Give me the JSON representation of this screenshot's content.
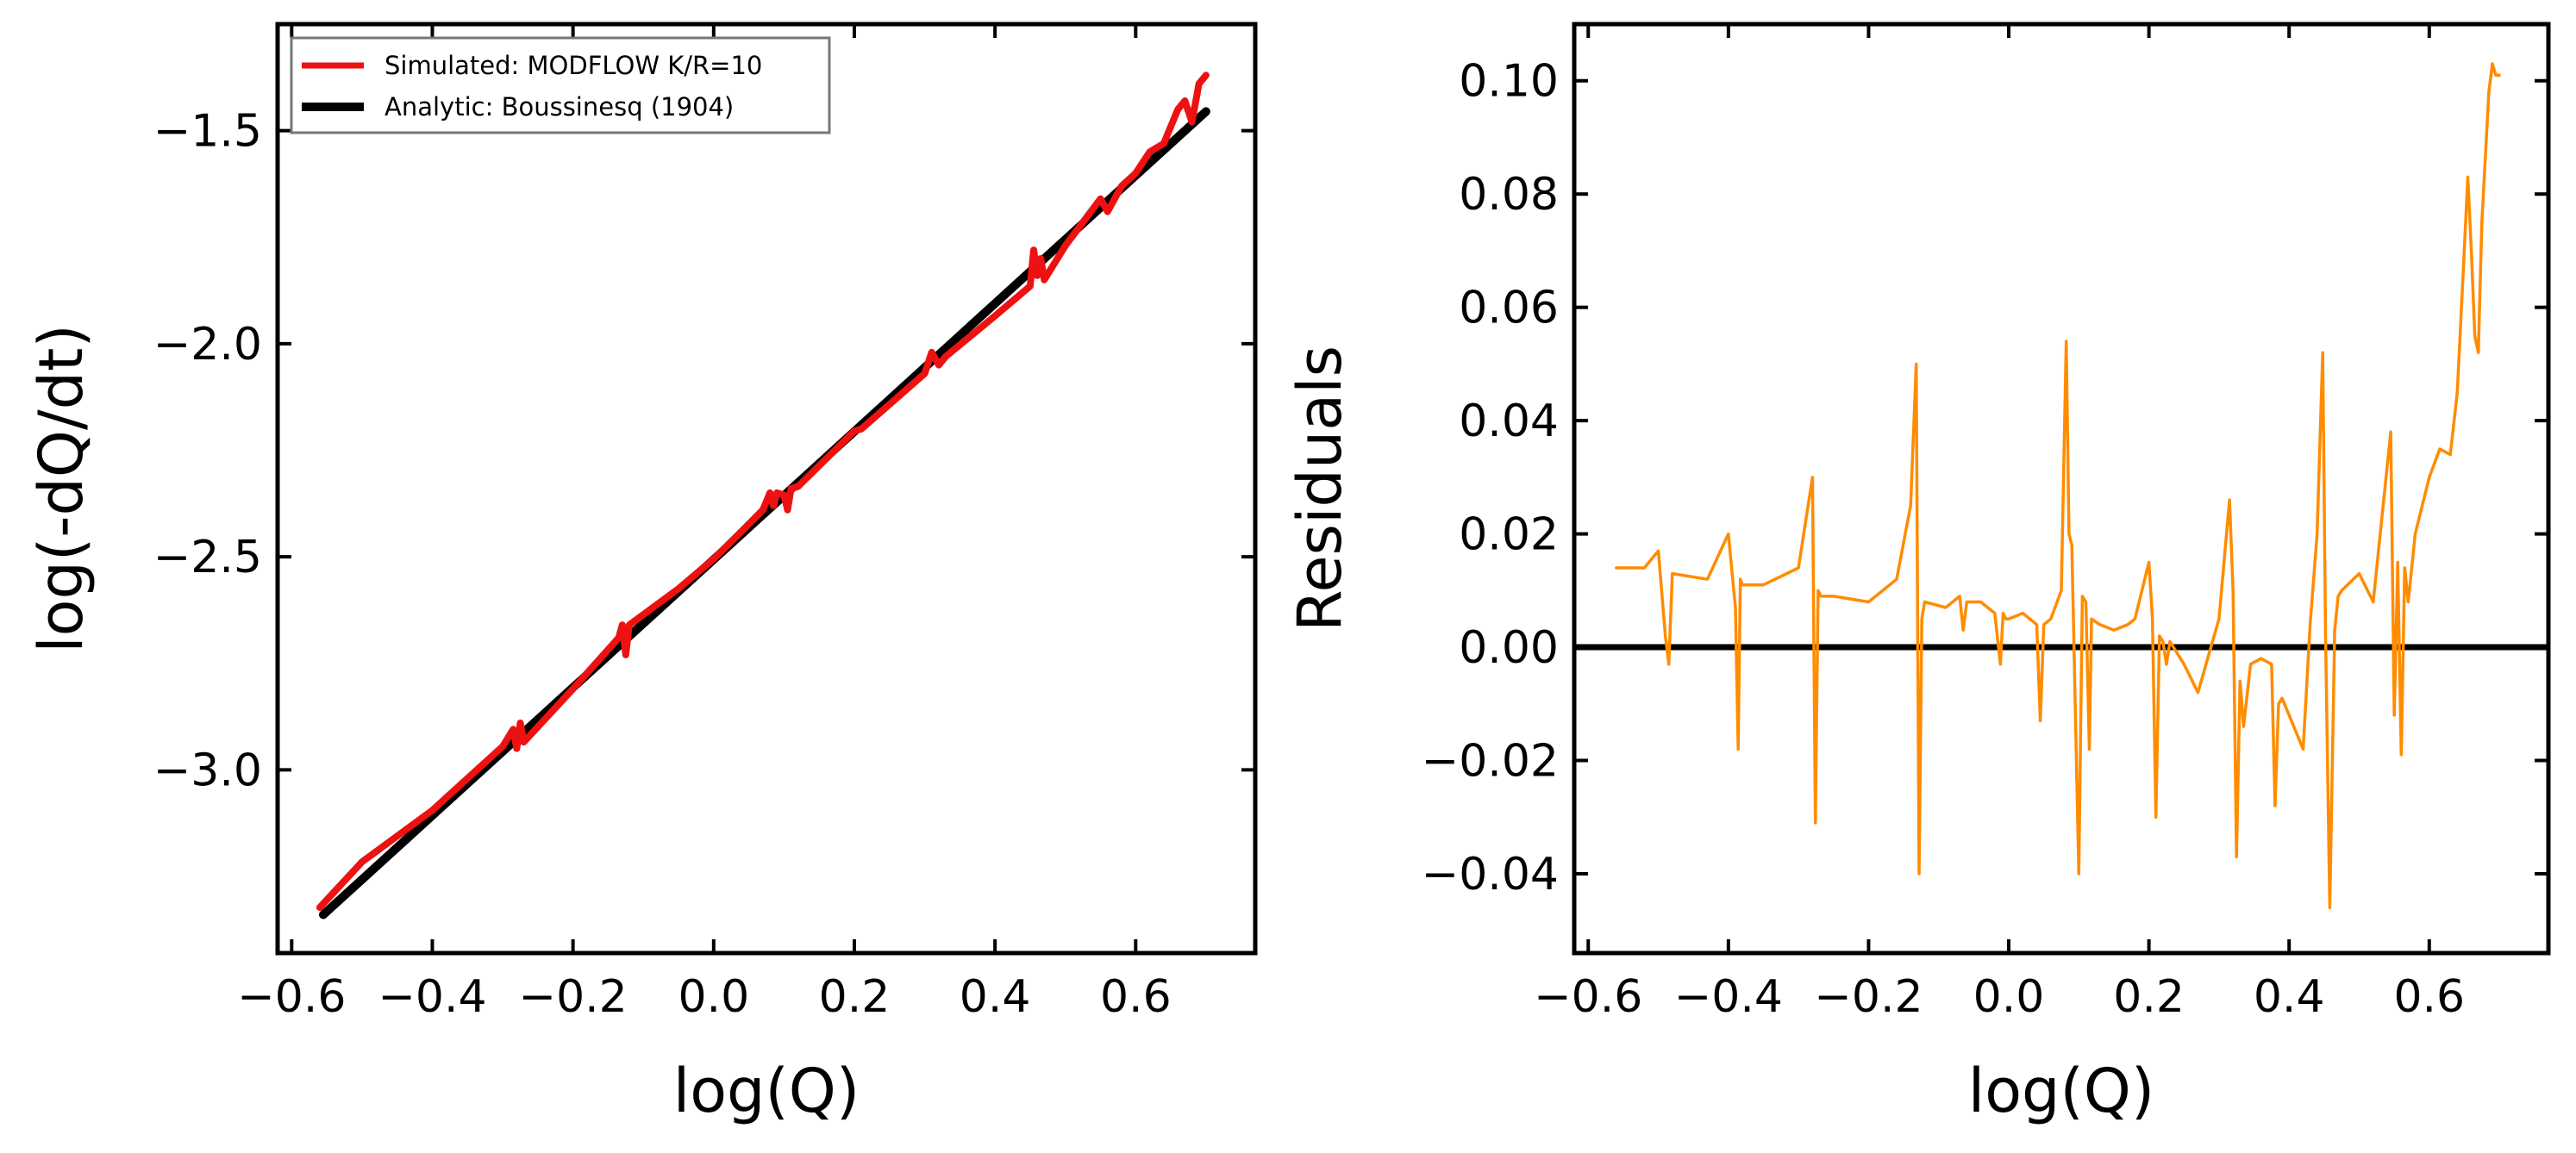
{
  "chart_data": [
    {
      "type": "line",
      "title": "",
      "xlabel": "log(Q)",
      "ylabel": "log(-dQ/dt)",
      "xlim": [
        -0.62,
        0.77
      ],
      "ylim": [
        -3.43,
        -1.25
      ],
      "xticks": [
        -0.6,
        -0.4,
        -0.2,
        0.0,
        0.2,
        0.4,
        0.6
      ],
      "xtick_labels": [
        "−0.6",
        "−0.4",
        "−0.2",
        "0.0",
        "0.2",
        "0.4",
        "0.6"
      ],
      "yticks": [
        -3.0,
        -2.5,
        -2.0,
        -1.5
      ],
      "ytick_labels": [
        "−3.0",
        "−2.5",
        "−2.0",
        "−1.5"
      ],
      "grid": false,
      "legend": "top-left",
      "series": [
        {
          "name": "Simulated: MODFLOW K/R=10",
          "color": "#ee1111",
          "x": [
            -0.56,
            -0.5,
            -0.4,
            -0.3,
            -0.285,
            -0.28,
            -0.275,
            -0.27,
            -0.2,
            -0.135,
            -0.13,
            -0.125,
            -0.12,
            -0.05,
            0.0,
            0.04,
            0.07,
            0.08,
            0.085,
            0.09,
            0.1,
            0.105,
            0.11,
            0.12,
            0.2,
            0.21,
            0.3,
            0.31,
            0.32,
            0.33,
            0.4,
            0.45,
            0.455,
            0.46,
            0.465,
            0.47,
            0.5,
            0.55,
            0.56,
            0.58,
            0.6,
            0.62,
            0.64,
            0.66,
            0.67,
            0.68,
            0.69,
            0.7
          ],
          "values": [
            -3.323,
            -3.216,
            -3.095,
            -2.945,
            -2.905,
            -2.95,
            -2.89,
            -2.935,
            -2.81,
            -2.69,
            -2.66,
            -2.73,
            -2.66,
            -2.575,
            -2.505,
            -2.44,
            -2.39,
            -2.35,
            -2.38,
            -2.35,
            -2.355,
            -2.39,
            -2.34,
            -2.335,
            -2.205,
            -2.2,
            -2.07,
            -2.02,
            -2.05,
            -2.03,
            -1.935,
            -1.865,
            -1.78,
            -1.84,
            -1.8,
            -1.85,
            -1.77,
            -1.66,
            -1.69,
            -1.63,
            -1.6,
            -1.55,
            -1.53,
            -1.45,
            -1.43,
            -1.48,
            -1.39,
            -1.37
          ]
        },
        {
          "name": "Analytic: Boussinesq (1904)",
          "color": "#000000",
          "x": [
            -0.555,
            0.7
          ],
          "values": [
            -3.34,
            -1.455
          ]
        }
      ]
    },
    {
      "type": "line",
      "title": "",
      "xlabel": "log(Q)",
      "ylabel": "Residuals",
      "xlim": [
        -0.62,
        0.77
      ],
      "ylim": [
        -0.054,
        0.11
      ],
      "xticks": [
        -0.6,
        -0.4,
        -0.2,
        0.0,
        0.2,
        0.4,
        0.6
      ],
      "xtick_labels": [
        "−0.6",
        "−0.4",
        "−0.2",
        "0.0",
        "0.2",
        "0.4",
        "0.6"
      ],
      "yticks": [
        -0.04,
        -0.02,
        0.0,
        0.02,
        0.04,
        0.06,
        0.08,
        0.1
      ],
      "ytick_labels": [
        "−0.04",
        "−0.02",
        "0.00",
        "0.02",
        "0.04",
        "0.06",
        "0.08",
        "0.10"
      ],
      "grid": false,
      "reference_line": {
        "y": 0.0,
        "color": "#000000"
      },
      "series": [
        {
          "color": "#ff8c00",
          "x": [
            -0.56,
            -0.52,
            -0.5,
            -0.49,
            -0.485,
            -0.48,
            -0.43,
            -0.4,
            -0.39,
            -0.386,
            -0.383,
            -0.38,
            -0.35,
            -0.3,
            -0.28,
            -0.276,
            -0.272,
            -0.268,
            -0.25,
            -0.2,
            -0.16,
            -0.14,
            -0.132,
            -0.128,
            -0.124,
            -0.12,
            -0.09,
            -0.07,
            -0.065,
            -0.06,
            -0.04,
            -0.02,
            -0.012,
            -0.008,
            -0.004,
            0.0,
            0.02,
            0.04,
            0.045,
            0.05,
            0.06,
            0.075,
            0.082,
            0.086,
            0.09,
            0.1,
            0.105,
            0.11,
            0.115,
            0.118,
            0.13,
            0.15,
            0.17,
            0.18,
            0.2,
            0.205,
            0.21,
            0.215,
            0.22,
            0.225,
            0.23,
            0.25,
            0.27,
            0.3,
            0.315,
            0.32,
            0.325,
            0.33,
            0.335,
            0.345,
            0.36,
            0.375,
            0.38,
            0.385,
            0.39,
            0.42,
            0.43,
            0.44,
            0.448,
            0.452,
            0.458,
            0.465,
            0.47,
            0.475,
            0.5,
            0.52,
            0.53,
            0.545,
            0.55,
            0.555,
            0.56,
            0.565,
            0.57,
            0.58,
            0.6,
            0.615,
            0.63,
            0.64,
            0.65,
            0.655,
            0.66,
            0.665,
            0.67,
            0.675,
            0.685,
            0.69,
            0.695,
            0.7
          ],
          "values": [
            0.014,
            0.014,
            0.017,
            0.002,
            -0.003,
            0.013,
            0.012,
            0.02,
            0.007,
            -0.018,
            0.012,
            0.011,
            0.011,
            0.014,
            0.03,
            -0.031,
            0.01,
            0.009,
            0.009,
            0.008,
            0.012,
            0.025,
            0.05,
            -0.04,
            0.005,
            0.008,
            0.007,
            0.009,
            0.003,
            0.008,
            0.008,
            0.006,
            -0.003,
            0.006,
            0.005,
            0.005,
            0.006,
            0.004,
            -0.013,
            0.004,
            0.005,
            0.01,
            0.054,
            0.02,
            0.018,
            -0.04,
            0.009,
            0.008,
            -0.018,
            0.005,
            0.004,
            0.003,
            0.004,
            0.005,
            0.015,
            0.005,
            -0.03,
            0.002,
            0.001,
            -0.003,
            0.001,
            -0.003,
            -0.008,
            0.005,
            0.026,
            0.01,
            -0.037,
            -0.006,
            -0.014,
            -0.003,
            -0.002,
            -0.003,
            -0.028,
            -0.01,
            -0.009,
            -0.018,
            0.004,
            0.02,
            0.052,
            0.002,
            -0.046,
            0.003,
            0.009,
            0.01,
            0.013,
            0.008,
            0.02,
            0.038,
            -0.012,
            0.015,
            -0.019,
            0.014,
            0.008,
            0.02,
            0.03,
            0.035,
            0.034,
            0.045,
            0.07,
            0.083,
            0.07,
            0.055,
            0.052,
            0.075,
            0.098,
            0.103,
            0.101,
            0.101
          ]
        }
      ]
    }
  ]
}
